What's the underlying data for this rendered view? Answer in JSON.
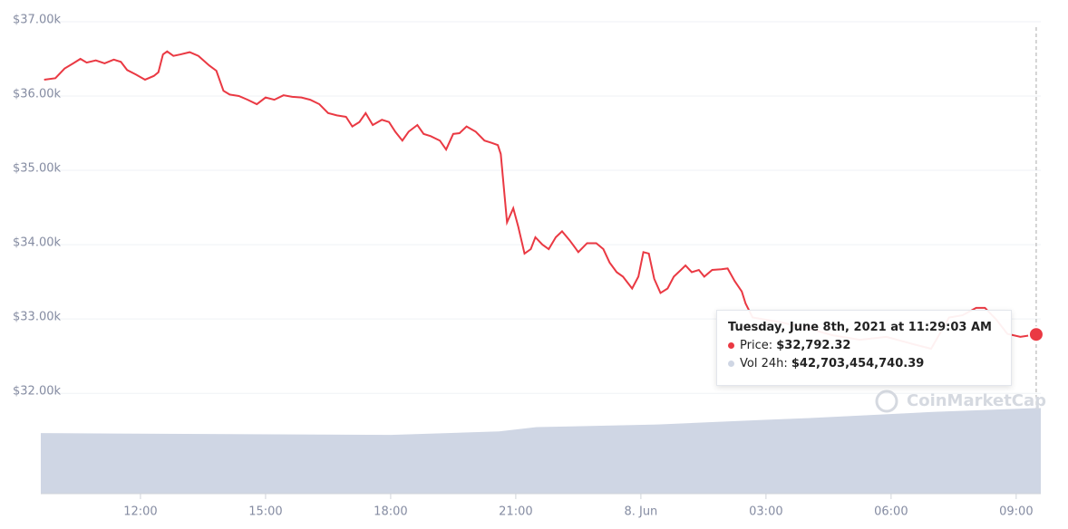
{
  "chart_data": {
    "type": "line",
    "ylim": [
      30650,
      37170
    ],
    "yticks": [
      {
        "value": 32000,
        "label": "$32.00k"
      },
      {
        "value": 33000,
        "label": "$33.00k"
      },
      {
        "value": 34000,
        "label": "$34.00k"
      },
      {
        "value": 35000,
        "label": "$35.00k"
      },
      {
        "value": 36000,
        "label": "$36.00k"
      },
      {
        "value": 37000,
        "label": "$37.00k"
      }
    ],
    "xlim": [
      9.61,
      33.59
    ],
    "xticks": [
      {
        "value": 12,
        "label": "12:00"
      },
      {
        "value": 15,
        "label": "15:00"
      },
      {
        "value": 18,
        "label": "18:00"
      },
      {
        "value": 21,
        "label": "21:00"
      },
      {
        "value": 24,
        "label": "8. Jun"
      },
      {
        "value": 27,
        "label": "03:00"
      },
      {
        "value": 30,
        "label": "06:00"
      },
      {
        "value": 33,
        "label": "09:00"
      }
    ],
    "y2lim": [
      0,
      241800000000
    ],
    "grid": true,
    "series": [
      {
        "color": "#ea3943",
        "x": [
          9.69,
          9.96,
          10.18,
          10.39,
          10.56,
          10.71,
          10.93,
          11.14,
          11.36,
          11.53,
          11.68,
          11.89,
          12.11,
          12.32,
          12.43,
          12.54,
          12.64,
          12.79,
          12.96,
          13.18,
          13.39,
          13.65,
          13.82,
          13.99,
          14.14,
          14.36,
          14.57,
          14.79,
          15.0,
          15.21,
          15.43,
          15.64,
          15.86,
          16.07,
          16.29,
          16.5,
          16.71,
          16.93,
          17.08,
          17.25,
          17.4,
          17.57,
          17.79,
          17.96,
          18.11,
          18.28,
          18.43,
          18.64,
          18.79,
          18.96,
          19.18,
          19.33,
          19.5,
          19.65,
          19.82,
          20.04,
          20.25,
          20.42,
          20.57,
          20.64,
          20.79,
          20.94,
          21.06,
          21.21,
          21.36,
          21.47,
          21.64,
          21.79,
          21.96,
          22.11,
          22.29,
          22.5,
          22.71,
          22.93,
          23.1,
          23.25,
          23.42,
          23.57,
          23.79,
          23.94,
          24.06,
          24.19,
          24.32,
          24.47,
          24.64,
          24.79,
          24.96,
          25.07,
          25.22,
          25.39,
          25.52,
          25.71,
          25.93,
          26.08,
          26.25,
          26.42,
          26.51,
          26.68,
          27.32,
          27.96,
          28.61,
          29.25,
          29.89,
          30.54,
          30.96,
          31.39,
          31.71,
          32.04,
          32.25,
          32.51,
          32.79,
          33.1,
          33.48
        ],
        "values": [
          36220,
          36240,
          36370,
          36440,
          36500,
          36450,
          36480,
          36440,
          36490,
          36460,
          36350,
          36290,
          36220,
          36270,
          36320,
          36560,
          36600,
          36540,
          36560,
          36590,
          36540,
          36410,
          36340,
          36070,
          36020,
          36000,
          35950,
          35890,
          35980,
          35950,
          36010,
          35990,
          35980,
          35950,
          35890,
          35770,
          35740,
          35720,
          35590,
          35650,
          35770,
          35610,
          35680,
          35650,
          35520,
          35400,
          35520,
          35610,
          35490,
          35460,
          35400,
          35280,
          35490,
          35500,
          35590,
          35520,
          35400,
          35370,
          35340,
          35220,
          34300,
          34490,
          34240,
          33880,
          33940,
          34100,
          34000,
          33940,
          34100,
          34180,
          34060,
          33900,
          34020,
          34020,
          33940,
          33760,
          33630,
          33570,
          33410,
          33570,
          33900,
          33880,
          33540,
          33350,
          33410,
          33570,
          33660,
          33720,
          33630,
          33660,
          33570,
          33660,
          33670,
          33680,
          33510,
          33370,
          33210,
          33020,
          32960,
          32880,
          32780,
          32720,
          32760,
          32660,
          32600,
          33020,
          33050,
          33150,
          33150,
          33000,
          32800,
          32760,
          32792.32
        ]
      },
      {
        "color": "#cfd6e4",
        "axis": "y2",
        "x": [
          9.69,
          18.0,
          20.6,
          21.5,
          24.4,
          26.9,
          28.0,
          31.0,
          33.48
        ],
        "values": [
          30200000000,
          29300000000,
          31100000000,
          33200000000,
          34500000000,
          36800000000,
          37700000000,
          40800000000,
          42703454740.39
        ]
      }
    ],
    "tooltip": {
      "title": "Tuesday, June 8th, 2021 at 11:29:03 AM",
      "price_label": "Price:",
      "price_value": "$32,792.32",
      "vol_label": "Vol 24h:",
      "vol_value": "$42,703,454,740.39"
    },
    "watermark": "CoinMarketCap"
  }
}
